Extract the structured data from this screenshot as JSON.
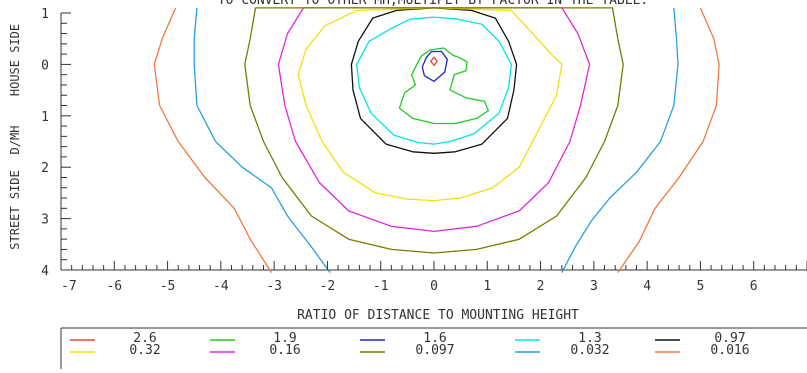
{
  "chart_data": {
    "type": "contour",
    "title": "TO CONVERT TO OTHER MH,MULTIPLY BY FACTOR IN THE TABLE.",
    "xlabel": "RATIO OF DISTANCE TO MOUNTING HEIGHT",
    "ylabel_house": "HOUSE SIDE",
    "ylabel_mid": "D/MH",
    "ylabel_street": "STREET SIDE",
    "xlim": [
      -7,
      7
    ],
    "ylim": [
      -1,
      4
    ],
    "x_ticks": [
      -7,
      -6,
      -5,
      -4,
      -3,
      -2,
      -1,
      0,
      1,
      2,
      3,
      4,
      5,
      6
    ],
    "y_ticks": [
      {
        "value": -1,
        "label": "1"
      },
      {
        "value": 0,
        "label": "0"
      },
      {
        "value": 1,
        "label": "1"
      },
      {
        "value": 2,
        "label": "2"
      },
      {
        "value": 3,
        "label": "3"
      },
      {
        "value": 4,
        "label": "4"
      }
    ],
    "levels": [
      {
        "label": "2.6",
        "color": "#e8453c",
        "points": [
          [
            -0.06,
            -0.06
          ],
          [
            0,
            -0.14
          ],
          [
            0.06,
            -0.06
          ],
          [
            0,
            0.02
          ]
        ]
      },
      {
        "label": "1.9",
        "color": "#22cc22",
        "points": [
          [
            -0.24,
            -0.16
          ],
          [
            -0.08,
            -0.28
          ],
          [
            0.18,
            -0.32
          ],
          [
            0.35,
            -0.18
          ],
          [
            0.5,
            -0.12
          ],
          [
            0.62,
            -0.05
          ],
          [
            0.6,
            0.12
          ],
          [
            0.38,
            0.2
          ],
          [
            0.3,
            0.5
          ],
          [
            0.6,
            0.65
          ],
          [
            0.95,
            0.72
          ],
          [
            1.02,
            0.9
          ],
          [
            0.8,
            1.05
          ],
          [
            0.4,
            1.15
          ],
          [
            0,
            1.15
          ],
          [
            -0.4,
            1.05
          ],
          [
            -0.65,
            0.85
          ],
          [
            -0.55,
            0.55
          ],
          [
            -0.35,
            0.4
          ],
          [
            -0.42,
            0.2
          ]
        ]
      },
      {
        "label": "1.6",
        "color": "#2222cc",
        "points": [
          [
            -0.15,
            -0.12
          ],
          [
            -0.05,
            -0.25
          ],
          [
            0.14,
            -0.25
          ],
          [
            0.25,
            -0.1
          ],
          [
            0.2,
            0.15
          ],
          [
            0,
            0.33
          ],
          [
            -0.18,
            0.22
          ],
          [
            -0.22,
            0.05
          ]
        ]
      },
      {
        "label": "1.3",
        "color": "#00e5e5",
        "points": [
          [
            -0.8,
            -0.7
          ],
          [
            -0.45,
            -0.88
          ],
          [
            0,
            -0.92
          ],
          [
            0.45,
            -0.88
          ],
          [
            0.9,
            -0.78
          ],
          [
            1.22,
            -0.45
          ],
          [
            1.45,
            0
          ],
          [
            1.4,
            0.45
          ],
          [
            1.22,
            0.95
          ],
          [
            0.75,
            1.35
          ],
          [
            0.3,
            1.5
          ],
          [
            0,
            1.55
          ],
          [
            -0.3,
            1.52
          ],
          [
            -0.75,
            1.38
          ],
          [
            -1.18,
            0.95
          ],
          [
            -1.4,
            0.45
          ],
          [
            -1.45,
            0
          ],
          [
            -1.22,
            -0.45
          ]
        ]
      },
      {
        "label": "0.97",
        "color": "#111111",
        "points": [
          [
            -1.15,
            -0.9
          ],
          [
            -0.7,
            -1.05
          ],
          [
            0,
            -1.1
          ],
          [
            0.7,
            -1.05
          ],
          [
            1.15,
            -0.9
          ],
          [
            1.4,
            -0.45
          ],
          [
            1.55,
            0
          ],
          [
            1.5,
            0.5
          ],
          [
            1.38,
            1.05
          ],
          [
            0.9,
            1.55
          ],
          [
            0.4,
            1.7
          ],
          [
            0,
            1.73
          ],
          [
            -0.4,
            1.7
          ],
          [
            -0.9,
            1.55
          ],
          [
            -1.38,
            1.05
          ],
          [
            -1.52,
            0.5
          ],
          [
            -1.55,
            0
          ],
          [
            -1.42,
            -0.45
          ]
        ]
      },
      {
        "label": "0.32",
        "color": "#f0e010",
        "points": [
          [
            -1.45,
            -1.05
          ],
          [
            0,
            -1.1
          ],
          [
            1.45,
            -1.05
          ],
          [
            1.85,
            -0.6
          ],
          [
            2.2,
            -0.2
          ],
          [
            2.4,
            0
          ],
          [
            2.3,
            0.6
          ],
          [
            1.9,
            1.4
          ],
          [
            1.6,
            2
          ],
          [
            1.1,
            2.4
          ],
          [
            0.5,
            2.6
          ],
          [
            0,
            2.65
          ],
          [
            -0.5,
            2.62
          ],
          [
            -1.1,
            2.5
          ],
          [
            -1.7,
            2.1
          ],
          [
            -2.1,
            1.5
          ],
          [
            -2.4,
            0.8
          ],
          [
            -2.55,
            0.2
          ],
          [
            -2.4,
            -0.3
          ],
          [
            -2.05,
            -0.75
          ]
        ]
      },
      {
        "label": "0.16",
        "color": "#e028e0",
        "points": [
          [
            -2.45,
            -1.1
          ],
          [
            -2.75,
            -0.6
          ],
          [
            -2.92,
            0
          ],
          [
            -2.8,
            0.8
          ],
          [
            -2.6,
            1.5
          ],
          [
            -2.15,
            2.3
          ],
          [
            -1.6,
            2.85
          ],
          [
            -0.8,
            3.15
          ],
          [
            0,
            3.25
          ],
          [
            0.8,
            3.15
          ],
          [
            1.6,
            2.85
          ],
          [
            2.15,
            2.3
          ],
          [
            2.55,
            1.5
          ],
          [
            2.75,
            0.8
          ],
          [
            2.92,
            0
          ],
          [
            2.7,
            -0.6
          ],
          [
            2.4,
            -1.1
          ]
        ]
      },
      {
        "label": "0.097",
        "color": "#7a7a00",
        "points": [
          [
            -3.35,
            -1.1
          ],
          [
            -3.45,
            -0.5
          ],
          [
            -3.55,
            0
          ],
          [
            -3.45,
            0.8
          ],
          [
            -3.2,
            1.5
          ],
          [
            -2.85,
            2.2
          ],
          [
            -2.3,
            2.95
          ],
          [
            -1.6,
            3.4
          ],
          [
            -0.8,
            3.6
          ],
          [
            0,
            3.67
          ],
          [
            0.8,
            3.6
          ],
          [
            1.6,
            3.4
          ],
          [
            2.3,
            2.95
          ],
          [
            2.85,
            2.2
          ],
          [
            3.2,
            1.5
          ],
          [
            3.45,
            0.8
          ],
          [
            3.55,
            0
          ],
          [
            3.45,
            -0.5
          ],
          [
            3.35,
            -1.1
          ]
        ]
      },
      {
        "label": "0.032",
        "color": "#2aa0d8",
        "points": [
          [
            -4.45,
            -1.1
          ],
          [
            -4.5,
            -0.5
          ],
          [
            -4.5,
            0
          ],
          [
            -4.45,
            0.8
          ],
          [
            -4.1,
            1.5
          ],
          [
            -3.6,
            2.0
          ],
          [
            -3.05,
            2.4
          ],
          [
            -2.75,
            2.95
          ],
          [
            -2.3,
            3.55
          ],
          [
            -1.95,
            4.05
          ]
        ],
        "closed": false
      },
      {
        "label": "0.032b",
        "color": "#2aa0d8",
        "points": [
          [
            4.5,
            -1.1
          ],
          [
            4.55,
            -0.5
          ],
          [
            4.58,
            0
          ],
          [
            4.5,
            0.8
          ],
          [
            4.25,
            1.5
          ],
          [
            3.8,
            2.1
          ],
          [
            3.3,
            2.6
          ],
          [
            2.95,
            3.05
          ],
          [
            2.65,
            3.55
          ],
          [
            2.4,
            4.05
          ]
        ],
        "closed": false
      },
      {
        "label": "0.016",
        "color": "#f07840",
        "points": [
          [
            -4.85,
            -1.1
          ],
          [
            -5.1,
            -0.5
          ],
          [
            -5.25,
            0
          ],
          [
            -5.15,
            0.8
          ],
          [
            -4.8,
            1.5
          ],
          [
            -4.3,
            2.2
          ],
          [
            -3.75,
            2.8
          ],
          [
            -3.45,
            3.4
          ],
          [
            -3.05,
            4.05
          ]
        ],
        "closed": false
      },
      {
        "label": "0.016b",
        "color": "#f07840",
        "points": [
          [
            5.0,
            -1.1
          ],
          [
            5.25,
            -0.5
          ],
          [
            5.35,
            0
          ],
          [
            5.3,
            0.8
          ],
          [
            5.05,
            1.5
          ],
          [
            4.6,
            2.2
          ],
          [
            4.15,
            2.8
          ],
          [
            3.85,
            3.45
          ],
          [
            3.45,
            4.05
          ]
        ],
        "closed": false
      }
    ],
    "legend": [
      {
        "label": "2.6",
        "color": "#e8453c"
      },
      {
        "label": "1.9",
        "color": "#22cc22"
      },
      {
        "label": "1.6",
        "color": "#2222cc"
      },
      {
        "label": "1.3",
        "color": "#00e5e5"
      },
      {
        "label": "0.97",
        "color": "#111111"
      },
      {
        "label": "0.32",
        "color": "#f0e010"
      },
      {
        "label": "0.16",
        "color": "#e028e0"
      },
      {
        "label": "0.097",
        "color": "#7a7a00"
      },
      {
        "label": "0.032",
        "color": "#2aa0d8"
      },
      {
        "label": "0.016",
        "color": "#f07840"
      }
    ]
  }
}
